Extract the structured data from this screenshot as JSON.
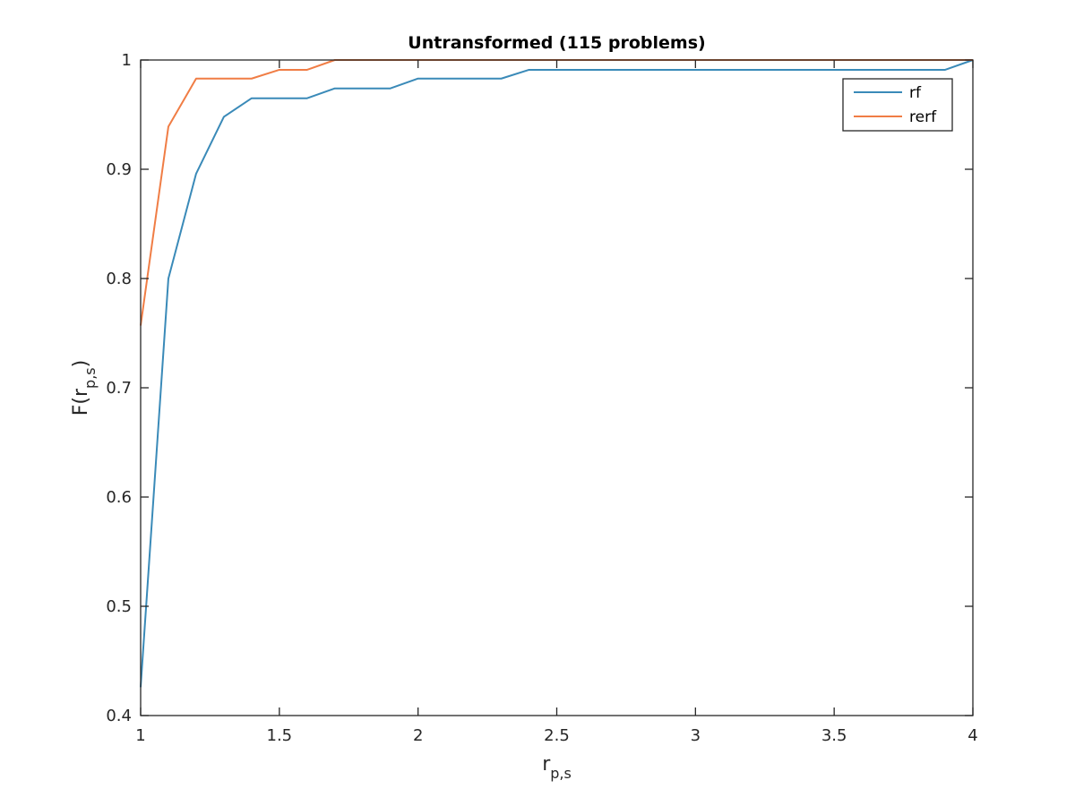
{
  "chart_data": {
    "type": "line",
    "title": "Untransformed (115 problems)",
    "xlabel": {
      "main": "r",
      "sub": "p,s"
    },
    "ylabel": {
      "main": "F(r",
      "sub": "p,s",
      "close": ")"
    },
    "xlim": [
      1,
      4
    ],
    "ylim": [
      0.4,
      1
    ],
    "xticks": [
      1,
      1.5,
      2,
      2.5,
      3,
      3.5,
      4
    ],
    "xtick_labels": [
      "1",
      "1.5",
      "2",
      "2.5",
      "3",
      "3.5",
      "4"
    ],
    "yticks": [
      0.4,
      0.5,
      0.6,
      0.7,
      0.8,
      0.9,
      1
    ],
    "ytick_labels": [
      "0.4",
      "0.5",
      "0.6",
      "0.7",
      "0.8",
      "0.9",
      "1"
    ],
    "grid": false,
    "legend_position": "top-right",
    "series": [
      {
        "name": "rf",
        "color": "#3a8ab8",
        "x": [
          1,
          1.1,
          1.2,
          1.3,
          1.4,
          1.5,
          1.6,
          1.7,
          1.8,
          1.9,
          2.0,
          2.1,
          2.2,
          2.3,
          2.4,
          2.5,
          3.0,
          3.5,
          3.9,
          4.0
        ],
        "y": [
          0.426,
          0.8,
          0.896,
          0.948,
          0.965,
          0.965,
          0.965,
          0.974,
          0.974,
          0.974,
          0.983,
          0.983,
          0.983,
          0.983,
          0.991,
          0.991,
          0.991,
          0.991,
          0.991,
          1.0
        ]
      },
      {
        "name": "rerf",
        "color": "#f07d45",
        "x": [
          1,
          1.1,
          1.2,
          1.3,
          1.4,
          1.5,
          1.6,
          1.7,
          2.0,
          2.5,
          3.0,
          3.5,
          4.0
        ],
        "y": [
          0.757,
          0.939,
          0.983,
          0.983,
          0.983,
          0.991,
          0.991,
          1.0,
          1.0,
          1.0,
          1.0,
          1.0,
          1.0
        ]
      }
    ]
  }
}
